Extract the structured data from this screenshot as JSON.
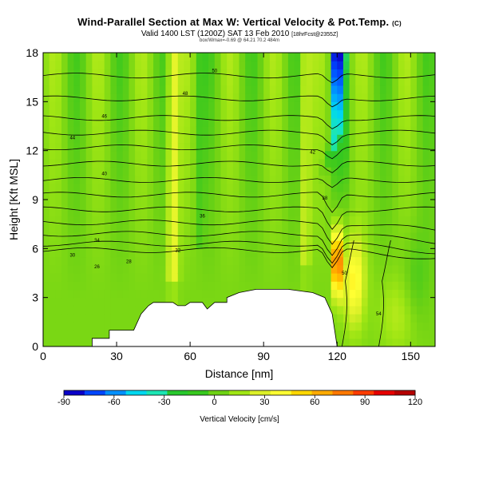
{
  "header": {
    "title": "Wind-Parallel Section at Max W: Vertical Velocity & Pot.Temp.",
    "title_mark": "(C)",
    "valid_line": "Valid 1400 LST (1200Z) SAT 13 Feb 2010",
    "valid_suffix": "[18hrFcst@2355Z]",
    "sub_line": "box/Wmax=-0.69 @ 64.21 70.2 484m"
  },
  "chart_data": {
    "type": "heatmap",
    "title": "Wind-Parallel Section at Max W: Vertical Velocity & Pot.Temp.",
    "xlabel": "Distance [nm]",
    "ylabel": "Height [Kft MSL]",
    "xlim": [
      0,
      160
    ],
    "ylim": [
      0,
      18
    ],
    "x_ticks": [
      0,
      30,
      60,
      90,
      120,
      150
    ],
    "y_ticks": [
      0,
      3,
      6,
      9,
      12,
      15,
      18
    ],
    "colorbar": {
      "label": "Vertical Velocity [cm/s]",
      "range": [
        -90,
        120
      ],
      "ticks": [
        -90,
        -60,
        -30,
        0,
        30,
        60,
        90,
        120
      ],
      "colors": [
        "#0a00c8",
        "#0046ff",
        "#0090ff",
        "#00d8f0",
        "#1ce6b4",
        "#28c82d",
        "#37c81e",
        "#6ed214",
        "#a0e614",
        "#dcf028",
        "#ffff32",
        "#ffd700",
        "#ffaa00",
        "#ff7800",
        "#ff3c00",
        "#e60000",
        "#b40000"
      ]
    },
    "terrain": {
      "x": [
        0,
        20,
        20,
        27,
        27,
        37,
        40,
        43,
        45,
        53,
        55,
        55,
        58,
        60,
        65,
        67,
        70,
        75,
        75,
        80,
        87,
        95,
        100,
        110,
        115,
        118,
        120
      ],
      "y": [
        0,
        0,
        0.5,
        0.5,
        1.0,
        1.0,
        2.0,
        2.5,
        2.7,
        2.7,
        2.5,
        2.5,
        2.5,
        2.7,
        2.7,
        2.3,
        2.7,
        2.7,
        3.0,
        3.3,
        3.5,
        3.5,
        3.5,
        3.3,
        3.0,
        2.0,
        0
      ]
    },
    "theta_contours": [
      {
        "label": "50",
        "y": 16.6,
        "slope": 0.2,
        "pos": [
          70,
          16.9
        ]
      },
      {
        "label": "48",
        "y": 15.2,
        "slope": 0.2,
        "pos": [
          58,
          15.5
        ]
      },
      {
        "label": "46",
        "y": 14.0,
        "slope": 0.2,
        "pos": [
          25,
          14.1
        ]
      },
      {
        "label": "44",
        "y": 13.1,
        "slope": 0.2,
        "pos": [
          12,
          12.8
        ]
      },
      {
        "label": "42",
        "y": 12.2,
        "slope": 0.2,
        "pos": [
          110,
          11.9
        ]
      },
      {
        "label": "40",
        "y": 11.2,
        "slope": 0.2,
        "pos": [
          25,
          10.6
        ]
      },
      {
        "label": "38",
        "y": 10.2,
        "slope": 0.2,
        "pos": [
          115,
          9.1
        ]
      },
      {
        "label": "36",
        "y": 9.3,
        "slope": 0.2,
        "pos": [
          65,
          8.0
        ]
      },
      {
        "label": "34",
        "y": 8.4,
        "slope": 0.2,
        "pos": [
          22,
          6.5
        ]
      },
      {
        "label": "32",
        "y": 7.6,
        "slope": 0.2,
        "pos": [
          55,
          5.9
        ]
      },
      {
        "label": "30",
        "y": 6.9,
        "slope": 0.2,
        "pos": [
          12,
          5.6
        ]
      },
      {
        "label": "28",
        "y": 6.3,
        "slope": 0.2,
        "pos": [
          35,
          5.2
        ]
      },
      {
        "label": "26",
        "y": 5.9,
        "slope": 0.2,
        "pos": [
          22,
          4.9
        ]
      }
    ],
    "vertical_contours": [
      {
        "label": "50",
        "x": 122,
        "pos": [
          123,
          4.5
        ]
      },
      {
        "label": "54",
        "x": 137,
        "pos": [
          137,
          2.0
        ]
      }
    ]
  }
}
